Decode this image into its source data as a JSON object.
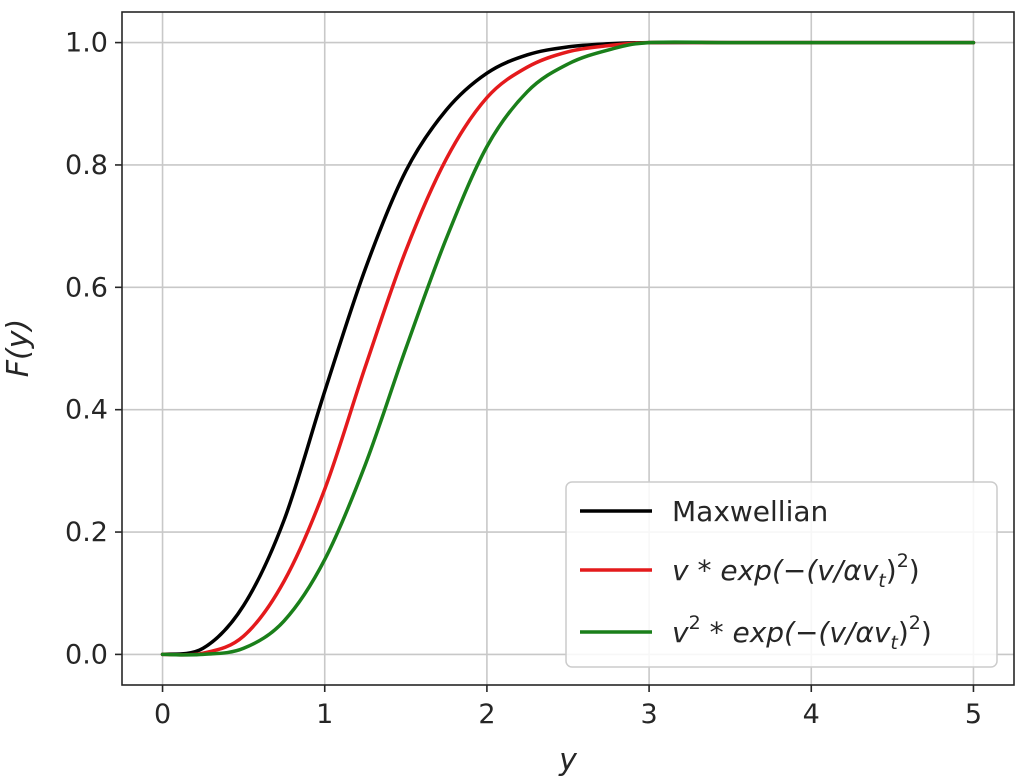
{
  "chart_data": {
    "type": "line",
    "xlabel": "y",
    "ylabel": "F(y)",
    "xlim": [
      -0.25,
      5.25
    ],
    "ylim": [
      -0.05,
      1.05
    ],
    "x_ticks": [
      0,
      1,
      2,
      3,
      4,
      5
    ],
    "y_ticks": [
      0.0,
      0.2,
      0.4,
      0.6,
      0.8,
      1.0
    ],
    "x_tick_labels": [
      "0",
      "1",
      "2",
      "3",
      "4",
      "5"
    ],
    "y_tick_labels": [
      "0.0",
      "0.2",
      "0.4",
      "0.6",
      "0.8",
      "1.0"
    ],
    "grid": true,
    "legend_position": "bottom-right",
    "x": [
      0.0,
      0.25,
      0.5,
      0.75,
      1.0,
      1.25,
      1.5,
      1.75,
      2.0,
      2.25,
      2.5,
      2.75,
      3.0,
      3.5,
      4.0,
      4.5,
      5.0
    ],
    "series": [
      {
        "name": "Maxwellian",
        "color": "#000000",
        "values": [
          0.0,
          0.01,
          0.08,
          0.22,
          0.43,
          0.63,
          0.79,
          0.89,
          0.95,
          0.98,
          0.993,
          0.998,
          1.0,
          1.0,
          1.0,
          1.0,
          1.0
        ]
      },
      {
        "name": "v * exp(−(v/αv_t)^2)",
        "color": "#e41a1c",
        "values": [
          0.0,
          0.002,
          0.03,
          0.12,
          0.27,
          0.47,
          0.66,
          0.81,
          0.91,
          0.96,
          0.985,
          0.995,
          1.0,
          1.0,
          1.0,
          1.0,
          1.0
        ]
      },
      {
        "name": "v^2 * exp(−(v/αv_t)^2)",
        "color": "#1a7f1a",
        "values": [
          0.0,
          0.0,
          0.01,
          0.055,
          0.155,
          0.31,
          0.5,
          0.68,
          0.83,
          0.92,
          0.965,
          0.988,
          1.0,
          1.0,
          1.0,
          1.0,
          1.0
        ]
      }
    ]
  },
  "legend": {
    "items": [
      {
        "label_plain": "Maxwellian"
      },
      {
        "label_prefix": "v",
        "label_mid": " * exp(−(v/αv",
        "label_sub": "t",
        "label_close": ")",
        "label_sup": "2",
        "label_end": ")"
      },
      {
        "label_prefix": "v",
        "label_prefix_sup": "2",
        "label_mid": " * exp(−(v/αv",
        "label_sub": "t",
        "label_close": ")",
        "label_sup": "2",
        "label_end": ")"
      }
    ]
  }
}
